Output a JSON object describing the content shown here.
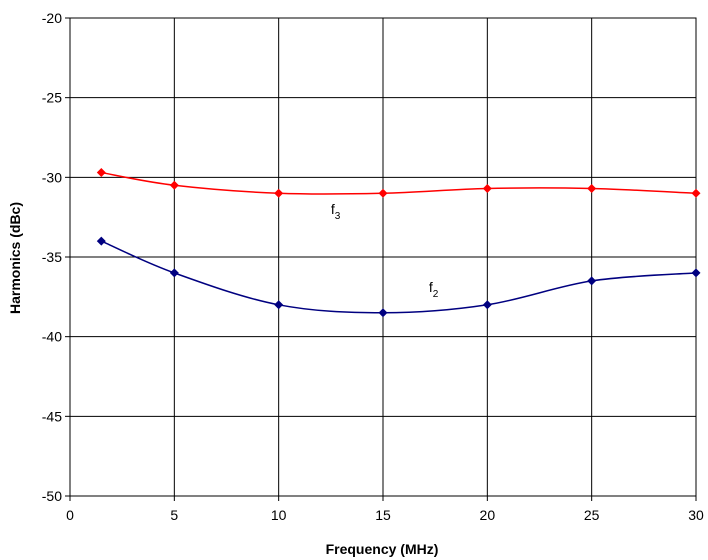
{
  "chart_data": {
    "type": "line",
    "title": "",
    "xlabel": "Frequency (MHz)",
    "ylabel": "Harmonics (dBc)",
    "xlim": [
      0,
      30
    ],
    "ylim": [
      -50,
      -20
    ],
    "xticks": [
      0,
      5,
      10,
      15,
      20,
      25,
      30
    ],
    "yticks": [
      -20,
      -25,
      -30,
      -35,
      -40,
      -45,
      -50
    ],
    "grid": true,
    "legend": "none",
    "series": [
      {
        "name": "f3",
        "label_main": "f",
        "label_sub": "3",
        "color": "#ff0000",
        "x": [
          1.5,
          5,
          10,
          15,
          20,
          25,
          30
        ],
        "y": [
          -29.7,
          -30.5,
          -31,
          -31,
          -30.7,
          -30.7,
          -31
        ],
        "label_at": [
          12.5,
          -32.3
        ]
      },
      {
        "name": "f2",
        "label_main": "f",
        "label_sub": "2",
        "color": "#000080",
        "x": [
          1.5,
          5,
          10,
          15,
          20,
          25,
          30
        ],
        "y": [
          -34,
          -36,
          -38,
          -38.5,
          -38,
          -36.5,
          -36
        ],
        "label_at": [
          17.2,
          -37.2
        ]
      }
    ]
  }
}
